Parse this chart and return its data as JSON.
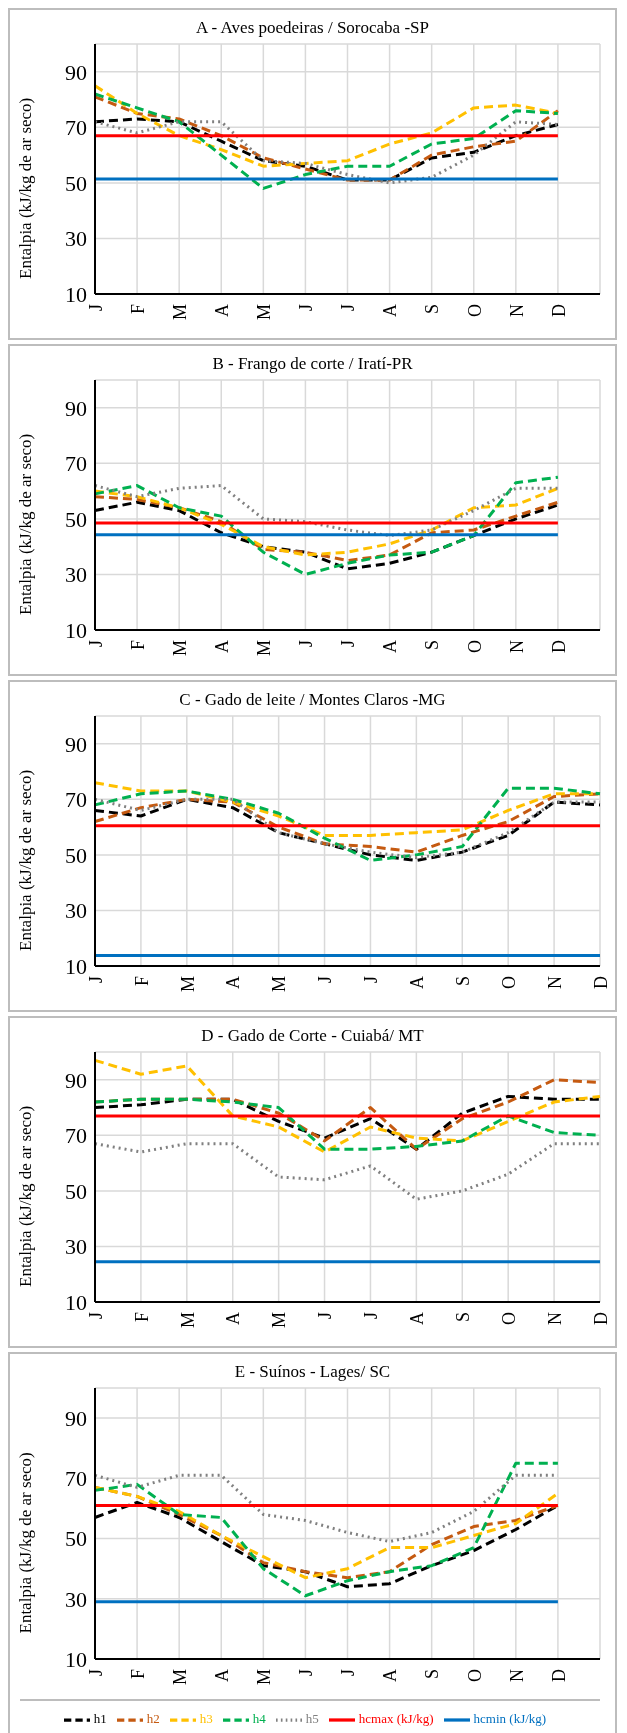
{
  "chart_data": [
    {
      "type": "line",
      "title": "A - Aves poedeiras / Sorocaba -SP",
      "ylabel": "Entalpia (kJ/kg de ar seco)",
      "categories": [
        "J",
        "F",
        "M",
        "A",
        "M",
        "J",
        "J",
        "A",
        "S",
        "O",
        "N",
        "D",
        null
      ],
      "ylim": [
        10,
        100
      ],
      "yticks": [
        10,
        30,
        50,
        70,
        90
      ],
      "grid": true,
      "legend": false,
      "series": [
        {
          "color": "#000000",
          "line_style": "dashed",
          "values": [
            72,
            73,
            72,
            65,
            58,
            56,
            51,
            51,
            59,
            61,
            67,
            71,
            null
          ]
        },
        {
          "color": "#c55a11",
          "line_style": "dashed",
          "values": [
            81,
            75,
            73,
            67,
            59,
            55,
            51,
            51,
            60,
            63,
            65,
            76,
            null
          ]
        },
        {
          "color": "#ffc000",
          "line_style": "dashed",
          "values": [
            85,
            75,
            67,
            62,
            56,
            57,
            58,
            64,
            68,
            77,
            78,
            75,
            null
          ]
        },
        {
          "color": "#00b050",
          "line_style": "dashed",
          "values": [
            82,
            77,
            72,
            60,
            48,
            53,
            56,
            56,
            64,
            66,
            76,
            75,
            null
          ]
        },
        {
          "color": "#808080",
          "line_style": "dotted",
          "values": [
            72,
            68,
            72,
            72,
            58,
            57,
            53,
            50,
            52,
            60,
            72,
            71,
            null
          ]
        },
        {
          "color": "#0070c0",
          "line_style": "solid",
          "values": [
            51.4,
            51.4,
            51.4,
            51.4,
            51.4,
            51.4,
            51.4,
            51.4,
            51.4,
            51.4,
            51.4,
            51.4,
            null
          ]
        },
        {
          "color": "#ff0000",
          "line_style": "solid",
          "values": [
            67,
            67,
            67,
            67,
            67,
            67,
            67,
            67,
            67,
            67,
            67,
            67,
            null
          ]
        }
      ]
    },
    {
      "type": "line",
      "title": "B - Frango de corte / Iratí-PR",
      "ylabel": "Entalpia (kJ/kg de ar seco)",
      "categories": [
        "J",
        "F",
        "M",
        "A",
        "M",
        "J",
        "J",
        "A",
        "S",
        "O",
        "N",
        "D",
        null
      ],
      "ylim": [
        10,
        100
      ],
      "yticks": [
        10,
        30,
        50,
        70,
        90
      ],
      "grid": true,
      "legend": false,
      "series": [
        {
          "color": "#000000",
          "line_style": "dashed",
          "values": [
            53,
            56,
            53,
            45,
            40,
            38,
            32,
            34,
            38,
            44,
            50,
            55,
            null
          ]
        },
        {
          "color": "#c55a11",
          "line_style": "dashed",
          "values": [
            58,
            57,
            54,
            49,
            39,
            38,
            35,
            37,
            45,
            46,
            51,
            56,
            null
          ]
        },
        {
          "color": "#ffc000",
          "line_style": "dashed",
          "values": [
            60,
            58,
            54,
            48,
            40,
            37,
            38,
            41,
            46,
            54,
            55,
            61,
            null
          ]
        },
        {
          "color": "#00b050",
          "line_style": "dashed",
          "values": [
            59,
            62,
            54,
            51,
            38,
            30,
            34,
            37,
            38,
            44,
            63,
            65,
            null
          ]
        },
        {
          "color": "#808080",
          "line_style": "dotted",
          "values": [
            62,
            58,
            61,
            62,
            50,
            49,
            46,
            44,
            46,
            53,
            61,
            61,
            null
          ]
        },
        {
          "color": "#0070c0",
          "line_style": "solid",
          "values": [
            44.3,
            44.3,
            44.3,
            44.3,
            44.3,
            44.3,
            44.3,
            44.3,
            44.3,
            44.3,
            44.3,
            44.3,
            null
          ]
        },
        {
          "color": "#ff0000",
          "line_style": "solid",
          "values": [
            48.5,
            48.5,
            48.5,
            48.5,
            48.5,
            48.5,
            48.5,
            48.5,
            48.5,
            48.5,
            48.5,
            48.5,
            null
          ]
        }
      ]
    },
    {
      "type": "line",
      "title": "C - Gado de leite / Montes Claros -MG",
      "ylabel": "Entalpia (kJ/kg de ar seco)",
      "categories": [
        "J",
        "F",
        "M",
        "A",
        "M",
        "J",
        "J",
        "A",
        "S",
        "O",
        "N",
        "D"
      ],
      "ylim": [
        10,
        100
      ],
      "yticks": [
        10,
        30,
        50,
        70,
        90
      ],
      "grid": true,
      "legend": false,
      "series": [
        {
          "color": "#000000",
          "line_style": "dashed",
          "values": [
            66,
            64,
            70,
            67,
            58,
            54,
            50,
            48,
            51,
            57,
            69,
            68
          ]
        },
        {
          "color": "#c55a11",
          "line_style": "dashed",
          "values": [
            62,
            67,
            70,
            69,
            60,
            54,
            53,
            51,
            57,
            62,
            71,
            72
          ]
        },
        {
          "color": "#ffc000",
          "line_style": "dashed",
          "values": [
            76,
            73,
            73,
            69,
            64,
            57,
            57,
            58,
            59,
            66,
            72,
            72
          ]
        },
        {
          "color": "#00b050",
          "line_style": "dashed",
          "values": [
            68,
            72,
            73,
            70,
            65,
            56,
            48,
            50,
            53,
            74,
            74,
            72
          ]
        },
        {
          "color": "#808080",
          "line_style": "dotted",
          "values": [
            70,
            66,
            70,
            70,
            58,
            54,
            51,
            49,
            51,
            58,
            69,
            69
          ]
        },
        {
          "color": "#0070c0",
          "line_style": "solid",
          "values": [
            13.8,
            13.8,
            13.8,
            13.8,
            13.8,
            13.8,
            13.8,
            13.8,
            13.8,
            13.8,
            13.8,
            13.8
          ]
        },
        {
          "color": "#ff0000",
          "line_style": "solid",
          "values": [
            60.5,
            60.5,
            60.5,
            60.5,
            60.5,
            60.5,
            60.5,
            60.5,
            60.5,
            60.5,
            60.5,
            60.5
          ]
        }
      ]
    },
    {
      "type": "line",
      "title": "D - Gado de Corte - Cuiabá/ MT",
      "ylabel": "Entalpia (kJ/kg de ar seco)",
      "categories": [
        "J",
        "F",
        "M",
        "A",
        "M",
        "J",
        "J",
        "A",
        "S",
        "O",
        "N",
        "D"
      ],
      "ylim": [
        10,
        100
      ],
      "yticks": [
        10,
        30,
        50,
        70,
        90
      ],
      "grid": true,
      "legend": false,
      "series": [
        {
          "color": "#000000",
          "line_style": "dashed",
          "values": [
            80,
            81,
            83,
            83,
            75,
            69,
            76,
            65,
            78,
            84,
            83,
            83
          ]
        },
        {
          "color": "#c55a11",
          "line_style": "dashed",
          "values": [
            82,
            83,
            83,
            83,
            78,
            68,
            80,
            65,
            76,
            82,
            90,
            89
          ]
        },
        {
          "color": "#ffc000",
          "line_style": "dashed",
          "values": [
            97,
            92,
            95,
            77,
            73,
            64,
            73,
            69,
            68,
            75,
            82,
            84
          ]
        },
        {
          "color": "#00b050",
          "line_style": "dashed",
          "values": [
            82,
            83,
            83,
            82,
            80,
            65,
            65,
            66,
            68,
            77,
            71,
            70
          ]
        },
        {
          "color": "#808080",
          "line_style": "dotted",
          "values": [
            67,
            64,
            67,
            67,
            55,
            54,
            59,
            47,
            50,
            56,
            67,
            67
          ]
        },
        {
          "color": "#0070c0",
          "line_style": "solid",
          "values": [
            24.5,
            24.5,
            24.5,
            24.5,
            24.5,
            24.5,
            24.5,
            24.5,
            24.5,
            24.5,
            24.5,
            24.5
          ]
        },
        {
          "color": "#ff0000",
          "line_style": "solid",
          "values": [
            77,
            77,
            77,
            77,
            77,
            77,
            77,
            77,
            77,
            77,
            77,
            77
          ]
        }
      ]
    },
    {
      "type": "line",
      "title": "E - Suínos - Lages/ SC",
      "ylabel": "Entalpia (kJ/kg de ar seco)",
      "categories": [
        "J",
        "F",
        "M",
        "A",
        "M",
        "J",
        "J",
        "A",
        "S",
        "O",
        "N",
        "D",
        null
      ],
      "ylim": [
        10,
        100
      ],
      "yticks": [
        10,
        30,
        50,
        70,
        90
      ],
      "grid": true,
      "legend": "bottom",
      "series": [
        {
          "name": "h1",
          "color": "#000000",
          "line_style": "dashed",
          "values": [
            57,
            62,
            57,
            49,
            41,
            39,
            34,
            35,
            41,
            46,
            53,
            61,
            null
          ]
        },
        {
          "name": "h2",
          "color": "#c55a11",
          "line_style": "dashed",
          "values": [
            67,
            64,
            58,
            51,
            42,
            39,
            37,
            39,
            48,
            54,
            56,
            61,
            null
          ]
        },
        {
          "name": "h3",
          "color": "#ffc000",
          "line_style": "dashed",
          "values": [
            67,
            64,
            59,
            51,
            44,
            37,
            40,
            47,
            47,
            51,
            55,
            65,
            null
          ]
        },
        {
          "name": "h4",
          "color": "#00b050",
          "line_style": "dashed",
          "values": [
            66,
            68,
            58,
            57,
            40,
            31,
            36,
            39,
            41,
            47,
            75,
            75,
            null
          ]
        },
        {
          "name": "h5",
          "color": "#808080",
          "line_style": "dotted",
          "values": [
            71,
            67,
            71,
            71,
            58,
            56,
            52,
            49,
            52,
            59,
            71,
            71,
            null
          ]
        },
        {
          "name": "hcmin (kJ/kg)",
          "color": "#0070c0",
          "line_style": "solid",
          "values": [
            29,
            29,
            29,
            29,
            29,
            29,
            29,
            29,
            29,
            29,
            29,
            29,
            null
          ]
        },
        {
          "name": "hcmax (kJ/kg)",
          "color": "#ff0000",
          "line_style": "solid",
          "values": [
            61,
            61,
            61,
            61,
            61,
            61,
            61,
            61,
            61,
            61,
            61,
            61,
            null
          ]
        }
      ]
    }
  ]
}
